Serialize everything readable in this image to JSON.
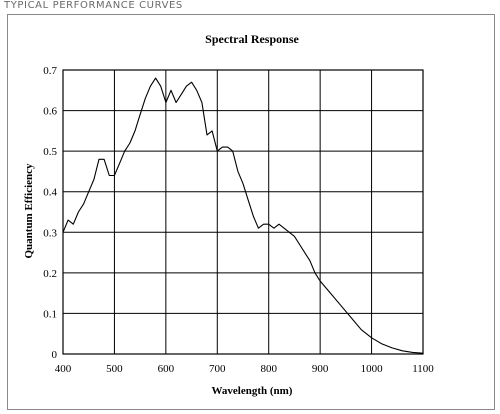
{
  "header": {
    "label": "TYPICAL PERFORMANCE CURVES"
  },
  "chart_data": {
    "type": "line",
    "title": "Spectral Response",
    "xlabel": "Wavelength (nm)",
    "ylabel": "Quantum Efficiency",
    "xlim": [
      400,
      1100
    ],
    "ylim": [
      0,
      0.7
    ],
    "xticks": [
      "400",
      "500",
      "600",
      "700",
      "800",
      "900",
      "1000",
      "1100"
    ],
    "yticks": [
      "0",
      "0.1",
      "0.2",
      "0.3",
      "0.4",
      "0.5",
      "0.6",
      "0.7"
    ],
    "grid": true,
    "series": [
      {
        "name": "",
        "color": "#000000",
        "x": [
          400,
          410,
          420,
          430,
          440,
          450,
          460,
          470,
          480,
          490,
          500,
          510,
          520,
          530,
          540,
          550,
          560,
          570,
          580,
          590,
          600,
          610,
          620,
          630,
          640,
          650,
          660,
          670,
          680,
          690,
          700,
          710,
          720,
          730,
          740,
          750,
          760,
          770,
          780,
          790,
          800,
          810,
          820,
          830,
          840,
          850,
          860,
          870,
          880,
          890,
          900,
          920,
          940,
          960,
          980,
          1000,
          1020,
          1040,
          1060,
          1080,
          1100
        ],
        "y": [
          0.3,
          0.33,
          0.32,
          0.35,
          0.37,
          0.4,
          0.43,
          0.48,
          0.48,
          0.44,
          0.44,
          0.47,
          0.5,
          0.52,
          0.55,
          0.59,
          0.63,
          0.66,
          0.68,
          0.66,
          0.62,
          0.65,
          0.62,
          0.64,
          0.66,
          0.67,
          0.65,
          0.62,
          0.54,
          0.55,
          0.5,
          0.51,
          0.51,
          0.5,
          0.45,
          0.42,
          0.38,
          0.34,
          0.31,
          0.32,
          0.32,
          0.31,
          0.32,
          0.31,
          0.3,
          0.29,
          0.27,
          0.25,
          0.23,
          0.2,
          0.18,
          0.15,
          0.12,
          0.09,
          0.06,
          0.04,
          0.025,
          0.015,
          0.008,
          0.004,
          0.002
        ]
      }
    ]
  }
}
